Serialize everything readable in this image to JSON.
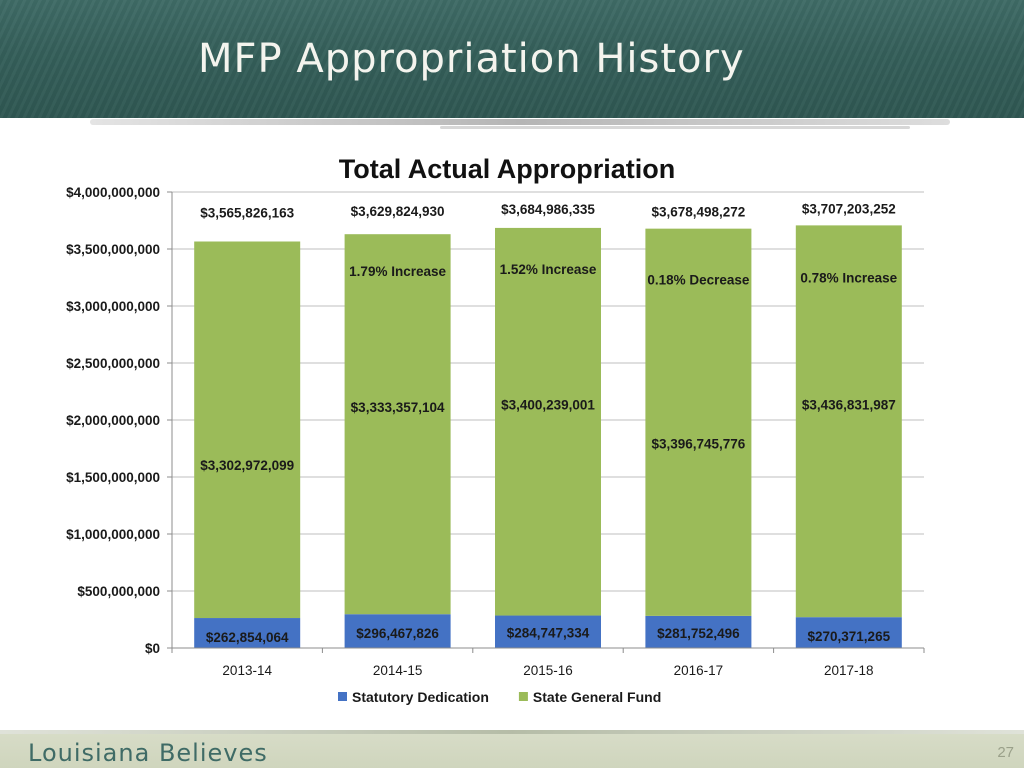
{
  "slide": {
    "title": "MFP Appropriation History",
    "footer_brand": "Louisiana Believes",
    "page_number": "27"
  },
  "chart_data": {
    "type": "bar",
    "stacked": true,
    "title": "Total Actual Appropriation",
    "categories": [
      "2013-14",
      "2014-15",
      "2015-16",
      "2016-17",
      "2017-18"
    ],
    "ylim": [
      0,
      4000000000
    ],
    "y_ticks": [
      {
        "value": 0,
        "label": "$0"
      },
      {
        "value": 500000000,
        "label": "$500,000,000"
      },
      {
        "value": 1000000000,
        "label": "$1,000,000,000"
      },
      {
        "value": 1500000000,
        "label": "$1,500,000,000"
      },
      {
        "value": 2000000000,
        "label": "$2,000,000,000"
      },
      {
        "value": 2500000000,
        "label": "$2,500,000,000"
      },
      {
        "value": 3000000000,
        "label": "$3,000,000,000"
      },
      {
        "value": 3500000000,
        "label": "$3,500,000,000"
      },
      {
        "value": 4000000000,
        "label": "$4,000,000,000"
      }
    ],
    "grid": true,
    "legend_position": "bottom",
    "series": [
      {
        "name": "Statutory Dedication",
        "color": "#4472c4",
        "values": [
          262854064,
          296467826,
          284747334,
          281752496,
          270371265
        ],
        "labels": [
          "$262,854,064",
          "$296,467,826",
          "$284,747,334",
          "$281,752,496",
          "$270,371,265"
        ]
      },
      {
        "name": "State General Fund",
        "color": "#9bbb59",
        "values": [
          3302972099,
          3333357104,
          3400239001,
          3396745776,
          3436831987
        ],
        "labels": [
          "$3,302,972,099",
          "$3,333,357,104",
          "$3,400,239,001",
          "$3,396,745,776",
          "$3,436,831,987"
        ]
      }
    ],
    "totals": {
      "values": [
        3565826163,
        3629824930,
        3684986335,
        3678498272,
        3707203252
      ],
      "labels": [
        "$3,565,826,163",
        "$3,629,824,930",
        "$3,684,986,335",
        "$3,678,498,272",
        "$3,707,203,252"
      ]
    },
    "annotations": [
      "",
      "1.79% Increase",
      "1.52% Increase",
      "0.18% Decrease",
      "0.78% Increase"
    ]
  }
}
